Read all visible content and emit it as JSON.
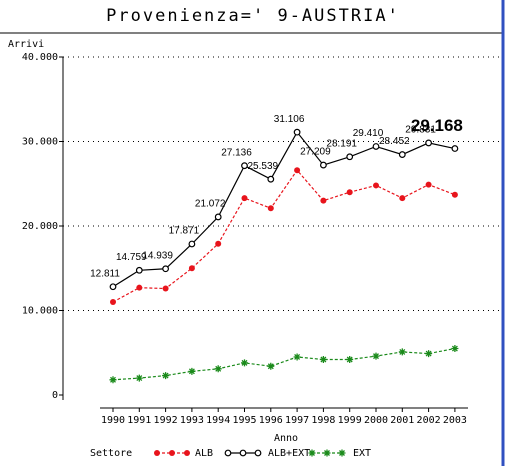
{
  "chart_data": {
    "type": "line",
    "title": "Provenienza=' 9-AUSTRIA'",
    "ylabel": "Arrivi",
    "xlabel": "Anno",
    "legend_title": "Settore",
    "categories": [
      "1990",
      "1991",
      "1992",
      "1993",
      "1994",
      "1995",
      "1996",
      "1997",
      "1998",
      "1999",
      "2000",
      "2001",
      "2002",
      "2003"
    ],
    "ylim": [
      0,
      40000
    ],
    "yticks": [
      0,
      {
        "value": 10000,
        "label": "10.000"
      },
      {
        "value": 20000,
        "label": "20.000"
      },
      {
        "value": 30000,
        "label": "30.000"
      },
      {
        "value": 40000,
        "label": "40.000"
      }
    ],
    "grid": true,
    "series": [
      {
        "name": "ALB",
        "color": "#e8141c",
        "marker": "dot",
        "dash": true,
        "values": [
          11000,
          12700,
          12600,
          15000,
          17900,
          23300,
          22100,
          26600,
          23000,
          24000,
          24800,
          23300,
          24900,
          23700
        ]
      },
      {
        "name": "ALB+EXT",
        "color": "#000000",
        "marker": "circle",
        "dash": false,
        "values": [
          12811,
          14759,
          14939,
          17871,
          21072,
          27136,
          25539,
          31106,
          27209,
          28191,
          29410,
          28452,
          29831,
          29168
        ],
        "value_labels": [
          "12.811",
          "14.759",
          "14.939",
          "17.871",
          "21.072",
          "27.136",
          "25.539",
          "31.106",
          "27.209",
          "28.191",
          "29.410",
          "28.452",
          "29.831",
          "29.168"
        ]
      },
      {
        "name": "EXT",
        "color": "#1a8a1a",
        "marker": "star",
        "dash": true,
        "values": [
          1800,
          2000,
          2300,
          2800,
          3100,
          3800,
          3400,
          4500,
          4200,
          4200,
          4600,
          5100,
          4900,
          5500
        ]
      }
    ]
  }
}
